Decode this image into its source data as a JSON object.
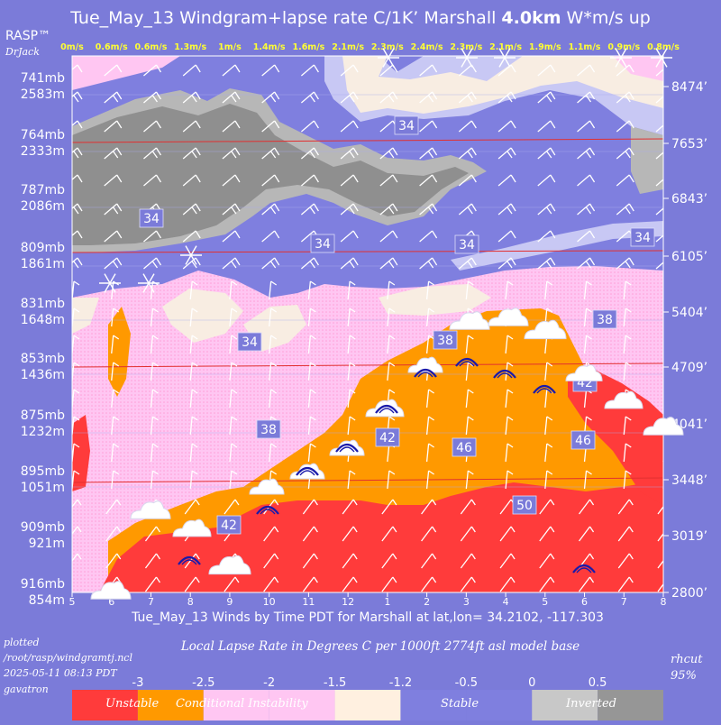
{
  "header": {
    "title_prefix": "Tue_May_13 Windgram+lapse rate C/1K’  Marshall ",
    "title_height": "4.0km",
    "title_suffix": "  W*m/s up",
    "brand": "RASP™",
    "brand_sub": "DrJack"
  },
  "footer": {
    "xaxis_title": "Tue_May_13 Winds by Time PDT for Marshall at lat,lon= 34.2102, -117.303",
    "plotted_line1": "plotted",
    "plotted_line2": "/root/rasp/windgramtj.ncl",
    "plotted_line3": "2025-05-11 08:13 PDT",
    "plotted_line4": "gavatron",
    "lapse_caption": "Local Lapse Rate in Degrees C per 1000ft  2774ft asl model base",
    "rh_line1": "rhcut",
    "rh_line2": "95%"
  },
  "colorbar": {
    "ticks": [
      "-3",
      "-2.5",
      "-2",
      "-1.5",
      "-1.2",
      "-0.5",
      "0",
      "0.5"
    ],
    "categories": [
      "Unstable",
      "Conditional Instability",
      "Stable",
      "Inverted"
    ],
    "colors": [
      "#ff3b3b",
      "#ff9900",
      "#ffc6f2",
      "#fff0e0",
      "#fff0e0",
      "#7f7fdf",
      "#c8c8c8",
      "#969696"
    ]
  },
  "chart_data": {
    "type": "heatmap",
    "title": "Tue_May_13 Windgram+lapse rate C/1K’ Marshall 4.0km W*m/s up",
    "xlabel": "Tue_May_13 Winds by Time PDT for Marshall at lat,lon= 34.2102, -117.303",
    "x_ticks": [
      "5",
      "6",
      "7",
      "8",
      "9",
      "10",
      "11",
      "12",
      "1",
      "2",
      "3",
      "4",
      "5",
      "6",
      "7",
      "8"
    ],
    "wstar_up": [
      "0m/s",
      "0.6m/s",
      "0.6m/s",
      "1.3m/s",
      "1m/s",
      "1.4m/s",
      "1.6m/s",
      "2.1m/s",
      "2.3m/s",
      "2.4m/s",
      "2.3m/s",
      "2.1m/s",
      "1.9m/s",
      "1.1m/s",
      "0.9m/s",
      "0.8m/s"
    ],
    "y_left": [
      {
        "mb": "741mb",
        "m": "2583m"
      },
      {
        "mb": "764mb",
        "m": "2333m"
      },
      {
        "mb": "787mb",
        "m": "2086m"
      },
      {
        "mb": "809mb",
        "m": "1861m"
      },
      {
        "mb": "831mb",
        "m": "1648m"
      },
      {
        "mb": "853mb",
        "m": "1436m"
      },
      {
        "mb": "875mb",
        "m": "1232m"
      },
      {
        "mb": "895mb",
        "m": "1051m"
      },
      {
        "mb": "909mb",
        "m": "921m"
      },
      {
        "mb": "916mb",
        "m": "854m"
      }
    ],
    "y_right": [
      "8474’",
      "7653’",
      "6843’",
      "6105’",
      "5404’",
      "4709’",
      "4041’",
      "3448’",
      "3019’",
      "2800’"
    ],
    "contour_labels": [
      "34",
      "34",
      "34",
      "34",
      "34",
      "34",
      "38",
      "38",
      "38",
      "42",
      "42",
      "42",
      "46",
      "46",
      "50"
    ]
  }
}
